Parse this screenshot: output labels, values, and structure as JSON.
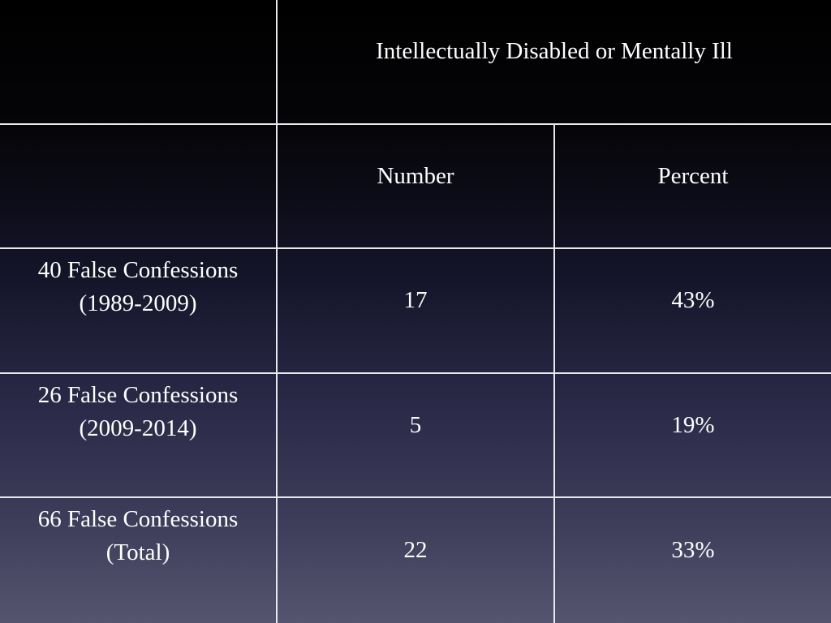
{
  "table": {
    "group_header": "Intellectually Disabled or Mentally Ill",
    "columns": [
      "Number",
      "Percent"
    ],
    "rows": [
      {
        "label_line1": "40 False Confessions",
        "label_line2": "(1989-2009)",
        "number": "17",
        "percent": "43%"
      },
      {
        "label_line1": "26 False Confessions",
        "label_line2": "(2009-2014)",
        "number": "5",
        "percent": "19%"
      },
      {
        "label_line1": "66 False Confessions",
        "label_line2": "(Total)",
        "number": "22",
        "percent": "33%"
      }
    ]
  }
}
